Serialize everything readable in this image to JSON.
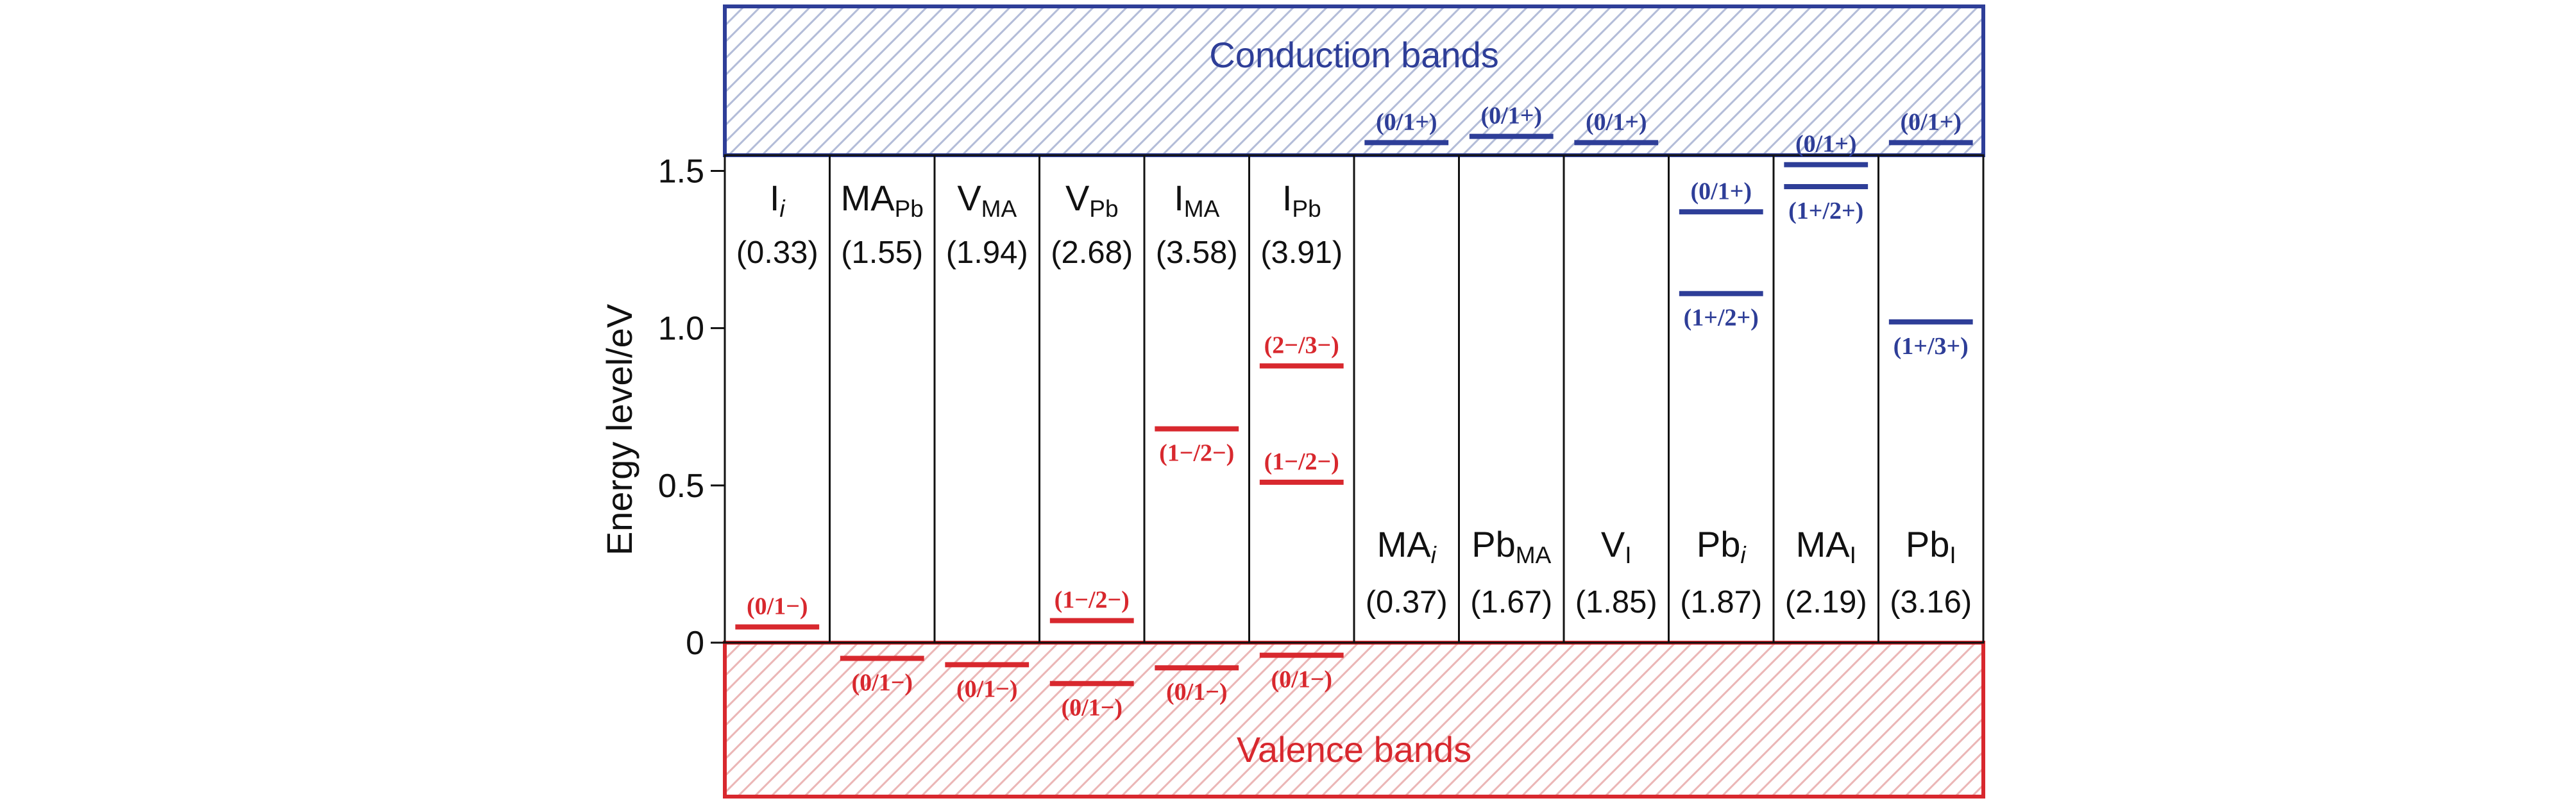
{
  "axis": {
    "ylabel": "Energy level/eV",
    "ticks": [
      {
        "value": 0,
        "label": "0"
      },
      {
        "value": 0.5,
        "label": "0.5"
      },
      {
        "value": 1.0,
        "label": "1.0"
      },
      {
        "value": 1.5,
        "label": "1.5"
      }
    ],
    "bandgap": 1.55
  },
  "bands": {
    "conduction": {
      "label": "Conduction bands",
      "color": "#2e3e98"
    },
    "valence": {
      "label": "Valence bands",
      "color": "#d8282e"
    }
  },
  "colors": {
    "acceptor": "#d8282e",
    "donor": "#2e3e98",
    "text": "#111111"
  },
  "chart_data": {
    "type": "energy-level-diagram",
    "ylabel": "Energy level/eV",
    "ylim": [
      0,
      1.55
    ],
    "defects": [
      {
        "name": "I",
        "sub": "i",
        "sub_italic": true,
        "value_text": "(0.33)",
        "label_pos": "top",
        "levels": [
          {
            "energy": 0.05,
            "label": "(0/1−)",
            "type": "acceptor",
            "label_side": "above"
          }
        ]
      },
      {
        "name": "MA",
        "sub": "Pb",
        "value_text": "(1.55)",
        "label_pos": "top",
        "levels": [
          {
            "energy": -0.05,
            "label": "(0/1−)",
            "type": "acceptor",
            "label_side": "below"
          }
        ]
      },
      {
        "name": "V",
        "sub": "MA",
        "value_text": "(1.94)",
        "label_pos": "top",
        "levels": [
          {
            "energy": -0.07,
            "label": "(0/1−)",
            "type": "acceptor",
            "label_side": "below"
          }
        ]
      },
      {
        "name": "V",
        "sub": "Pb",
        "value_text": "(2.68)",
        "label_pos": "top",
        "levels": [
          {
            "energy": -0.13,
            "label": "(0/1−)",
            "type": "acceptor",
            "label_side": "below"
          },
          {
            "energy": 0.07,
            "label": "(1−/2−)",
            "type": "acceptor",
            "label_side": "above"
          }
        ]
      },
      {
        "name": "I",
        "sub": "MA",
        "value_text": "(3.58)",
        "label_pos": "top",
        "levels": [
          {
            "energy": -0.08,
            "label": "(0/1−)",
            "type": "acceptor",
            "label_side": "below"
          },
          {
            "energy": 0.68,
            "label": "(1−/2−)",
            "type": "acceptor",
            "label_side": "below"
          }
        ]
      },
      {
        "name": "I",
        "sub": "Pb",
        "value_text": "(3.91)",
        "label_pos": "top",
        "levels": [
          {
            "energy": -0.04,
            "label": "(0/1−)",
            "type": "acceptor",
            "label_side": "below"
          },
          {
            "energy": 0.51,
            "label": "(1−/2−)",
            "type": "acceptor",
            "label_side": "above"
          },
          {
            "energy": 0.88,
            "label": "(2−/3−)",
            "type": "acceptor",
            "label_side": "above"
          }
        ]
      },
      {
        "name": "MA",
        "sub": "i",
        "sub_italic": true,
        "value_text": "(0.37)",
        "label_pos": "bottom",
        "levels": [
          {
            "energy": 1.59,
            "label": "(0/1+)",
            "type": "donor",
            "label_side": "above"
          }
        ]
      },
      {
        "name": "Pb",
        "sub": "MA",
        "value_text": "(1.67)",
        "label_pos": "bottom",
        "levels": [
          {
            "energy": 1.61,
            "label": "(0/1+)",
            "type": "donor",
            "label_side": "above"
          }
        ]
      },
      {
        "name": "V",
        "sub": "I",
        "value_text": "(1.85)",
        "label_pos": "bottom",
        "levels": [
          {
            "energy": 1.59,
            "label": "(0/1+)",
            "type": "donor",
            "label_side": "above"
          }
        ]
      },
      {
        "name": "Pb",
        "sub": "i",
        "sub_italic": true,
        "value_text": "(1.87)",
        "label_pos": "bottom",
        "levels": [
          {
            "energy": 1.37,
            "label": "(0/1+)",
            "type": "donor",
            "label_side": "above"
          },
          {
            "energy": 1.11,
            "label": "(1+/2+)",
            "type": "donor",
            "label_side": "below"
          }
        ]
      },
      {
        "name": "MA",
        "sub": "I",
        "value_text": "(2.19)",
        "label_pos": "bottom",
        "levels": [
          {
            "energy": 1.52,
            "label": "(0/1+)",
            "type": "donor",
            "label_side": "above"
          },
          {
            "energy": 1.45,
            "label": "(1+/2+)",
            "type": "donor",
            "label_side": "below"
          }
        ]
      },
      {
        "name": "Pb",
        "sub": "I",
        "value_text": "(3.16)",
        "label_pos": "bottom",
        "levels": [
          {
            "energy": 1.59,
            "label": "(0/1+)",
            "type": "donor",
            "label_side": "above"
          },
          {
            "energy": 1.02,
            "label": "(1+/3+)",
            "type": "donor",
            "label_side": "below"
          }
        ]
      }
    ]
  }
}
